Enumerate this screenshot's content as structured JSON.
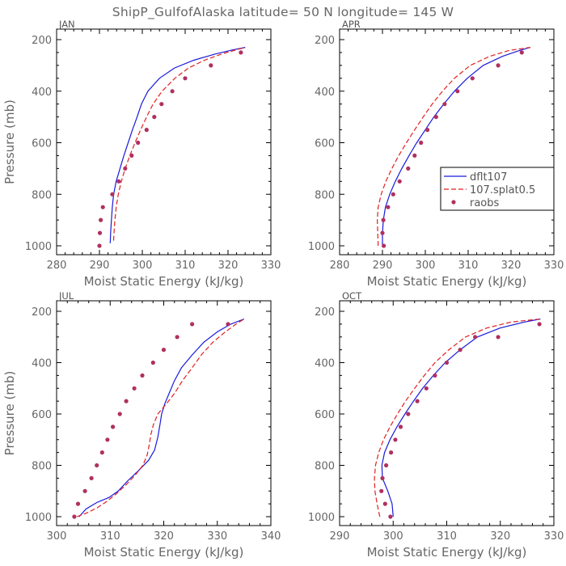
{
  "chart_data": {
    "type": "line",
    "title": "ShipP_GulfofAlaska   latitude= 50 N longitude= 145 W",
    "legend": {
      "placement": "inside-right of APR panel",
      "entries": [
        {
          "name": "dflt107",
          "style": "solid",
          "color": "#1a1adc"
        },
        {
          "name": "107.splat0.5",
          "style": "dashed",
          "color": "#e02020"
        },
        {
          "name": "raobs",
          "style": "dots",
          "color": "#b03060"
        }
      ]
    },
    "panels": [
      {
        "name": "JAN",
        "xlabel": "Moist Static Energy (kJ/kg)",
        "ylabel": "Pressure (mb)",
        "xlim": [
          280,
          330
        ],
        "ylim": [
          1000,
          200
        ],
        "y_inverted": true,
        "xticks": [
          280,
          290,
          300,
          310,
          320,
          330
        ],
        "yticks": [
          200,
          400,
          600,
          800,
          1000
        ],
        "series": [
          {
            "name": "dflt107",
            "points": [
              [
                292.5,
                990
              ],
              [
                292.6,
                950
              ],
              [
                292.8,
                900
              ],
              [
                293.0,
                850
              ],
              [
                293.3,
                800
              ],
              [
                293.9,
                750
              ],
              [
                294.8,
                700
              ],
              [
                295.7,
                650
              ],
              [
                296.7,
                600
              ],
              [
                297.7,
                550
              ],
              [
                298.8,
                500
              ],
              [
                299.8,
                450
              ],
              [
                301.3,
                400
              ],
              [
                304.0,
                350
              ],
              [
                307.5,
                310
              ],
              [
                312.0,
                280
              ],
              [
                317.0,
                256
              ],
              [
                321.0,
                240
              ],
              [
                324.0,
                230
              ]
            ]
          },
          {
            "name": "107.splat0.5",
            "points": [
              [
                293.3,
                980
              ],
              [
                293.4,
                950
              ],
              [
                293.6,
                900
              ],
              [
                293.9,
                850
              ],
              [
                294.4,
                800
              ],
              [
                295.1,
                750
              ],
              [
                296.0,
                700
              ],
              [
                297.1,
                650
              ],
              [
                298.3,
                600
              ],
              [
                299.6,
                550
              ],
              [
                301.0,
                500
              ],
              [
                302.5,
                450
              ],
              [
                304.6,
                400
              ],
              [
                307.6,
                350
              ],
              [
                310.8,
                310
              ],
              [
                314.5,
                280
              ],
              [
                318.5,
                256
              ],
              [
                321.8,
                240
              ],
              [
                324.0,
                230
              ]
            ]
          }
        ],
        "raobs": [
          [
            290.0,
            1000
          ],
          [
            290.1,
            950
          ],
          [
            290.3,
            900
          ],
          [
            290.8,
            850
          ],
          [
            293.0,
            800
          ],
          [
            294.5,
            750
          ],
          [
            296.0,
            700
          ],
          [
            297.5,
            650
          ],
          [
            299.0,
            600
          ],
          [
            301.0,
            550
          ],
          [
            302.8,
            500
          ],
          [
            304.5,
            450
          ],
          [
            307.0,
            400
          ],
          [
            310.0,
            350
          ],
          [
            316.0,
            300
          ],
          [
            323.0,
            250
          ]
        ]
      },
      {
        "name": "APR",
        "xlabel": "Moist Static Energy (kJ/kg)",
        "ylabel": "",
        "xlim": [
          280,
          330
        ],
        "ylim": [
          1000,
          200
        ],
        "y_inverted": true,
        "xticks": [
          280,
          290,
          300,
          310,
          320,
          330
        ],
        "yticks": [
          200,
          400,
          600,
          800,
          1000
        ],
        "series": [
          {
            "name": "dflt107",
            "points": [
              [
                290.0,
                1000
              ],
              [
                290.0,
                950
              ],
              [
                290.2,
                900
              ],
              [
                290.7,
                850
              ],
              [
                291.7,
                800
              ],
              [
                293.0,
                750
              ],
              [
                294.5,
                700
              ],
              [
                296.2,
                650
              ],
              [
                298.0,
                600
              ],
              [
                300.0,
                550
              ],
              [
                302.0,
                500
              ],
              [
                304.3,
                450
              ],
              [
                306.8,
                400
              ],
              [
                309.8,
                350
              ],
              [
                313.5,
                300
              ],
              [
                318.0,
                265
              ],
              [
                322.0,
                242
              ],
              [
                324.5,
                230
              ]
            ]
          },
          {
            "name": "107.splat0.5",
            "points": [
              [
                289.0,
                1000
              ],
              [
                288.9,
                950
              ],
              [
                288.8,
                900
              ],
              [
                289.0,
                850
              ],
              [
                289.7,
                800
              ],
              [
                290.8,
                750
              ],
              [
                292.2,
                700
              ],
              [
                293.8,
                650
              ],
              [
                295.6,
                600
              ],
              [
                297.5,
                550
              ],
              [
                299.5,
                500
              ],
              [
                301.6,
                450
              ],
              [
                304.0,
                400
              ],
              [
                306.8,
                350
              ],
              [
                310.5,
                300
              ],
              [
                315.0,
                265
              ],
              [
                319.5,
                242
              ],
              [
                324.5,
                230
              ]
            ]
          }
        ],
        "raobs": [
          [
            290.3,
            1000
          ],
          [
            290.0,
            950
          ],
          [
            290.2,
            900
          ],
          [
            291.3,
            850
          ],
          [
            292.5,
            800
          ],
          [
            294.0,
            750
          ],
          [
            296.0,
            700
          ],
          [
            297.5,
            650
          ],
          [
            299.0,
            600
          ],
          [
            300.5,
            550
          ],
          [
            302.5,
            500
          ],
          [
            304.5,
            450
          ],
          [
            307.5,
            400
          ],
          [
            311.0,
            350
          ],
          [
            317.0,
            300
          ],
          [
            322.5,
            250
          ]
        ]
      },
      {
        "name": "JUL",
        "xlabel": "Moist Static Energy (kJ/kg)",
        "ylabel": "Pressure (mb)",
        "xlim": [
          300,
          340
        ],
        "ylim": [
          1000,
          200
        ],
        "y_inverted": true,
        "xticks": [
          300,
          310,
          320,
          330,
          340
        ],
        "yticks": [
          200,
          400,
          600,
          800,
          1000
        ],
        "series": [
          {
            "name": "dflt107",
            "points": [
              [
                304.2,
                1000
              ],
              [
                305.5,
                970
              ],
              [
                307.5,
                945
              ],
              [
                309.8,
                925
              ],
              [
                311.5,
                900
              ],
              [
                313.3,
                860
              ],
              [
                315.3,
                820
              ],
              [
                317.2,
                780
              ],
              [
                318.3,
                740
              ],
              [
                318.9,
                690
              ],
              [
                319.3,
                640
              ],
              [
                319.6,
                600
              ],
              [
                320.2,
                560
              ],
              [
                321.0,
                520
              ],
              [
                322.0,
                470
              ],
              [
                323.3,
                420
              ],
              [
                325.3,
                370
              ],
              [
                327.5,
                320
              ],
              [
                330.0,
                280
              ],
              [
                332.5,
                250
              ],
              [
                335.0,
                230
              ]
            ]
          },
          {
            "name": "107.splat0.5",
            "points": [
              [
                303.8,
                1000
              ],
              [
                305.7,
                985
              ],
              [
                307.6,
                965
              ],
              [
                309.4,
                940
              ],
              [
                311.2,
                910
              ],
              [
                313.0,
                875
              ],
              [
                314.6,
                840
              ],
              [
                316.1,
                800
              ],
              [
                316.9,
                760
              ],
              [
                317.3,
                720
              ],
              [
                317.6,
                680
              ],
              [
                318.1,
                640
              ],
              [
                318.9,
                600
              ],
              [
                320.5,
                560
              ],
              [
                322.0,
                520
              ],
              [
                323.5,
                470
              ],
              [
                325.3,
                420
              ],
              [
                327.0,
                370
              ],
              [
                329.2,
                320
              ],
              [
                331.5,
                280
              ],
              [
                333.5,
                250
              ],
              [
                335.0,
                230
              ]
            ]
          }
        ],
        "raobs": [
          [
            303.3,
            1000
          ],
          [
            304.0,
            950
          ],
          [
            305.3,
            900
          ],
          [
            306.5,
            850
          ],
          [
            307.5,
            800
          ],
          [
            308.5,
            750
          ],
          [
            309.5,
            700
          ],
          [
            310.5,
            650
          ],
          [
            311.8,
            600
          ],
          [
            313.0,
            550
          ],
          [
            314.5,
            500
          ],
          [
            316.0,
            450
          ],
          [
            318.0,
            400
          ],
          [
            320.0,
            350
          ],
          [
            322.5,
            300
          ],
          [
            325.3,
            250
          ],
          [
            332.0,
            250
          ]
        ]
      },
      {
        "name": "OCT",
        "xlabel": "Moist Static Energy (kJ/kg)",
        "ylabel": "",
        "xlim": [
          290,
          330
        ],
        "ylim": [
          1000,
          200
        ],
        "y_inverted": true,
        "xticks": [
          290,
          300,
          310,
          320,
          330
        ],
        "yticks": [
          200,
          400,
          600,
          800,
          1000
        ],
        "series": [
          {
            "name": "dflt107",
            "points": [
              [
                300.0,
                1000
              ],
              [
                299.8,
                950
              ],
              [
                299.0,
                900
              ],
              [
                298.0,
                850
              ],
              [
                297.9,
                800
              ],
              [
                298.4,
                750
              ],
              [
                299.4,
                700
              ],
              [
                300.7,
                650
              ],
              [
                302.2,
                600
              ],
              [
                303.8,
                550
              ],
              [
                305.5,
                500
              ],
              [
                307.5,
                450
              ],
              [
                309.7,
                400
              ],
              [
                312.5,
                350
              ],
              [
                315.7,
                300
              ],
              [
                320.0,
                265
              ],
              [
                324.5,
                242
              ],
              [
                327.5,
                230
              ]
            ]
          },
          {
            "name": "107.splat0.5",
            "points": [
              [
                297.5,
                1000
              ],
              [
                297.0,
                950
              ],
              [
                296.6,
                900
              ],
              [
                296.5,
                850
              ],
              [
                296.7,
                800
              ],
              [
                297.3,
                750
              ],
              [
                298.2,
                700
              ],
              [
                299.4,
                650
              ],
              [
                300.8,
                600
              ],
              [
                302.3,
                550
              ],
              [
                304.0,
                500
              ],
              [
                305.8,
                450
              ],
              [
                307.8,
                400
              ],
              [
                310.4,
                350
              ],
              [
                313.5,
                300
              ],
              [
                317.5,
                265
              ],
              [
                322.0,
                242
              ],
              [
                327.5,
                230
              ]
            ]
          }
        ],
        "raobs": [
          [
            299.5,
            1000
          ],
          [
            298.5,
            950
          ],
          [
            297.8,
            900
          ],
          [
            298.0,
            850
          ],
          [
            298.7,
            800
          ],
          [
            299.6,
            750
          ],
          [
            300.4,
            700
          ],
          [
            301.4,
            650
          ],
          [
            302.8,
            600
          ],
          [
            304.5,
            550
          ],
          [
            306.2,
            500
          ],
          [
            307.8,
            450
          ],
          [
            310.0,
            400
          ],
          [
            312.5,
            350
          ],
          [
            315.3,
            300
          ],
          [
            319.6,
            300
          ],
          [
            327.3,
            250
          ]
        ]
      }
    ]
  }
}
